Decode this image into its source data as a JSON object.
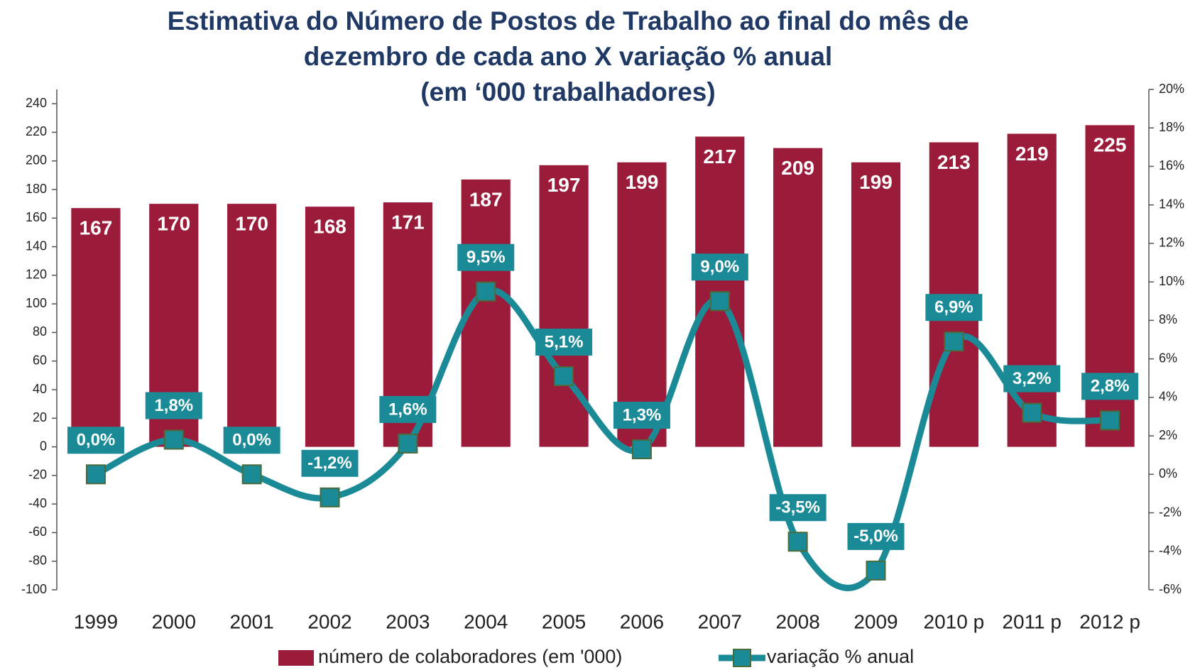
{
  "chart_data": {
    "type": "bar_line",
    "title": [
      "Estimativa do Número de Postos de Trabalho ao final do mês de",
      "dezembro de cada ano X variação % anual",
      "(em ‘000 trabalhadores)"
    ],
    "categories": [
      "1999",
      "2000",
      "2001",
      "2002",
      "2003",
      "2004",
      "2005",
      "2006",
      "2007",
      "2008",
      "2009",
      "2010 p",
      "2011 p",
      "2012 p"
    ],
    "series": [
      {
        "name": "número de colaboradores (em '000)",
        "type": "bar",
        "color": "#9b1c3a",
        "values": [
          167,
          170,
          170,
          168,
          171,
          187,
          197,
          199,
          217,
          209,
          199,
          213,
          219,
          225
        ]
      },
      {
        "name": "variação % anual",
        "type": "line",
        "axis": "y2",
        "color": "#1a8a96",
        "values": [
          0.0,
          1.8,
          0.0,
          -1.2,
          1.6,
          9.5,
          5.1,
          1.3,
          9.0,
          -3.5,
          -5.0,
          6.9,
          3.2,
          2.8
        ],
        "value_labels": [
          "0,0%",
          "1,8%",
          "0,0%",
          "-1,2%",
          "1,6%",
          "9,5%",
          "5,1%",
          "1,3%",
          "9,0%",
          "-3,5%",
          "-5,0%",
          "6,9%",
          "3,2%",
          "2,8%"
        ]
      }
    ],
    "ylim": [
      -100,
      250
    ],
    "yticks": [
      -100,
      -80,
      -60,
      -40,
      -20,
      0,
      20,
      40,
      60,
      80,
      100,
      120,
      140,
      160,
      180,
      200,
      220,
      240
    ],
    "y2lim": [
      -6,
      20
    ],
    "y2ticks": [
      {
        "value": -6,
        "label": "-6%"
      },
      {
        "value": -4,
        "label": "-4%"
      },
      {
        "value": -2,
        "label": "-2%"
      },
      {
        "value": 0,
        "label": "0%"
      },
      {
        "value": 2,
        "label": "2%"
      },
      {
        "value": 4,
        "label": "4%"
      },
      {
        "value": 6,
        "label": "6%"
      },
      {
        "value": 8,
        "label": "8%"
      },
      {
        "value": 10,
        "label": "10%"
      },
      {
        "value": 12,
        "label": "12%"
      },
      {
        "value": 14,
        "label": "14%"
      },
      {
        "value": 16,
        "label": "16%"
      },
      {
        "value": 18,
        "label": "18%"
      },
      {
        "value": 20,
        "label": "20%"
      }
    ],
    "legend": "bottom",
    "grid": false
  }
}
